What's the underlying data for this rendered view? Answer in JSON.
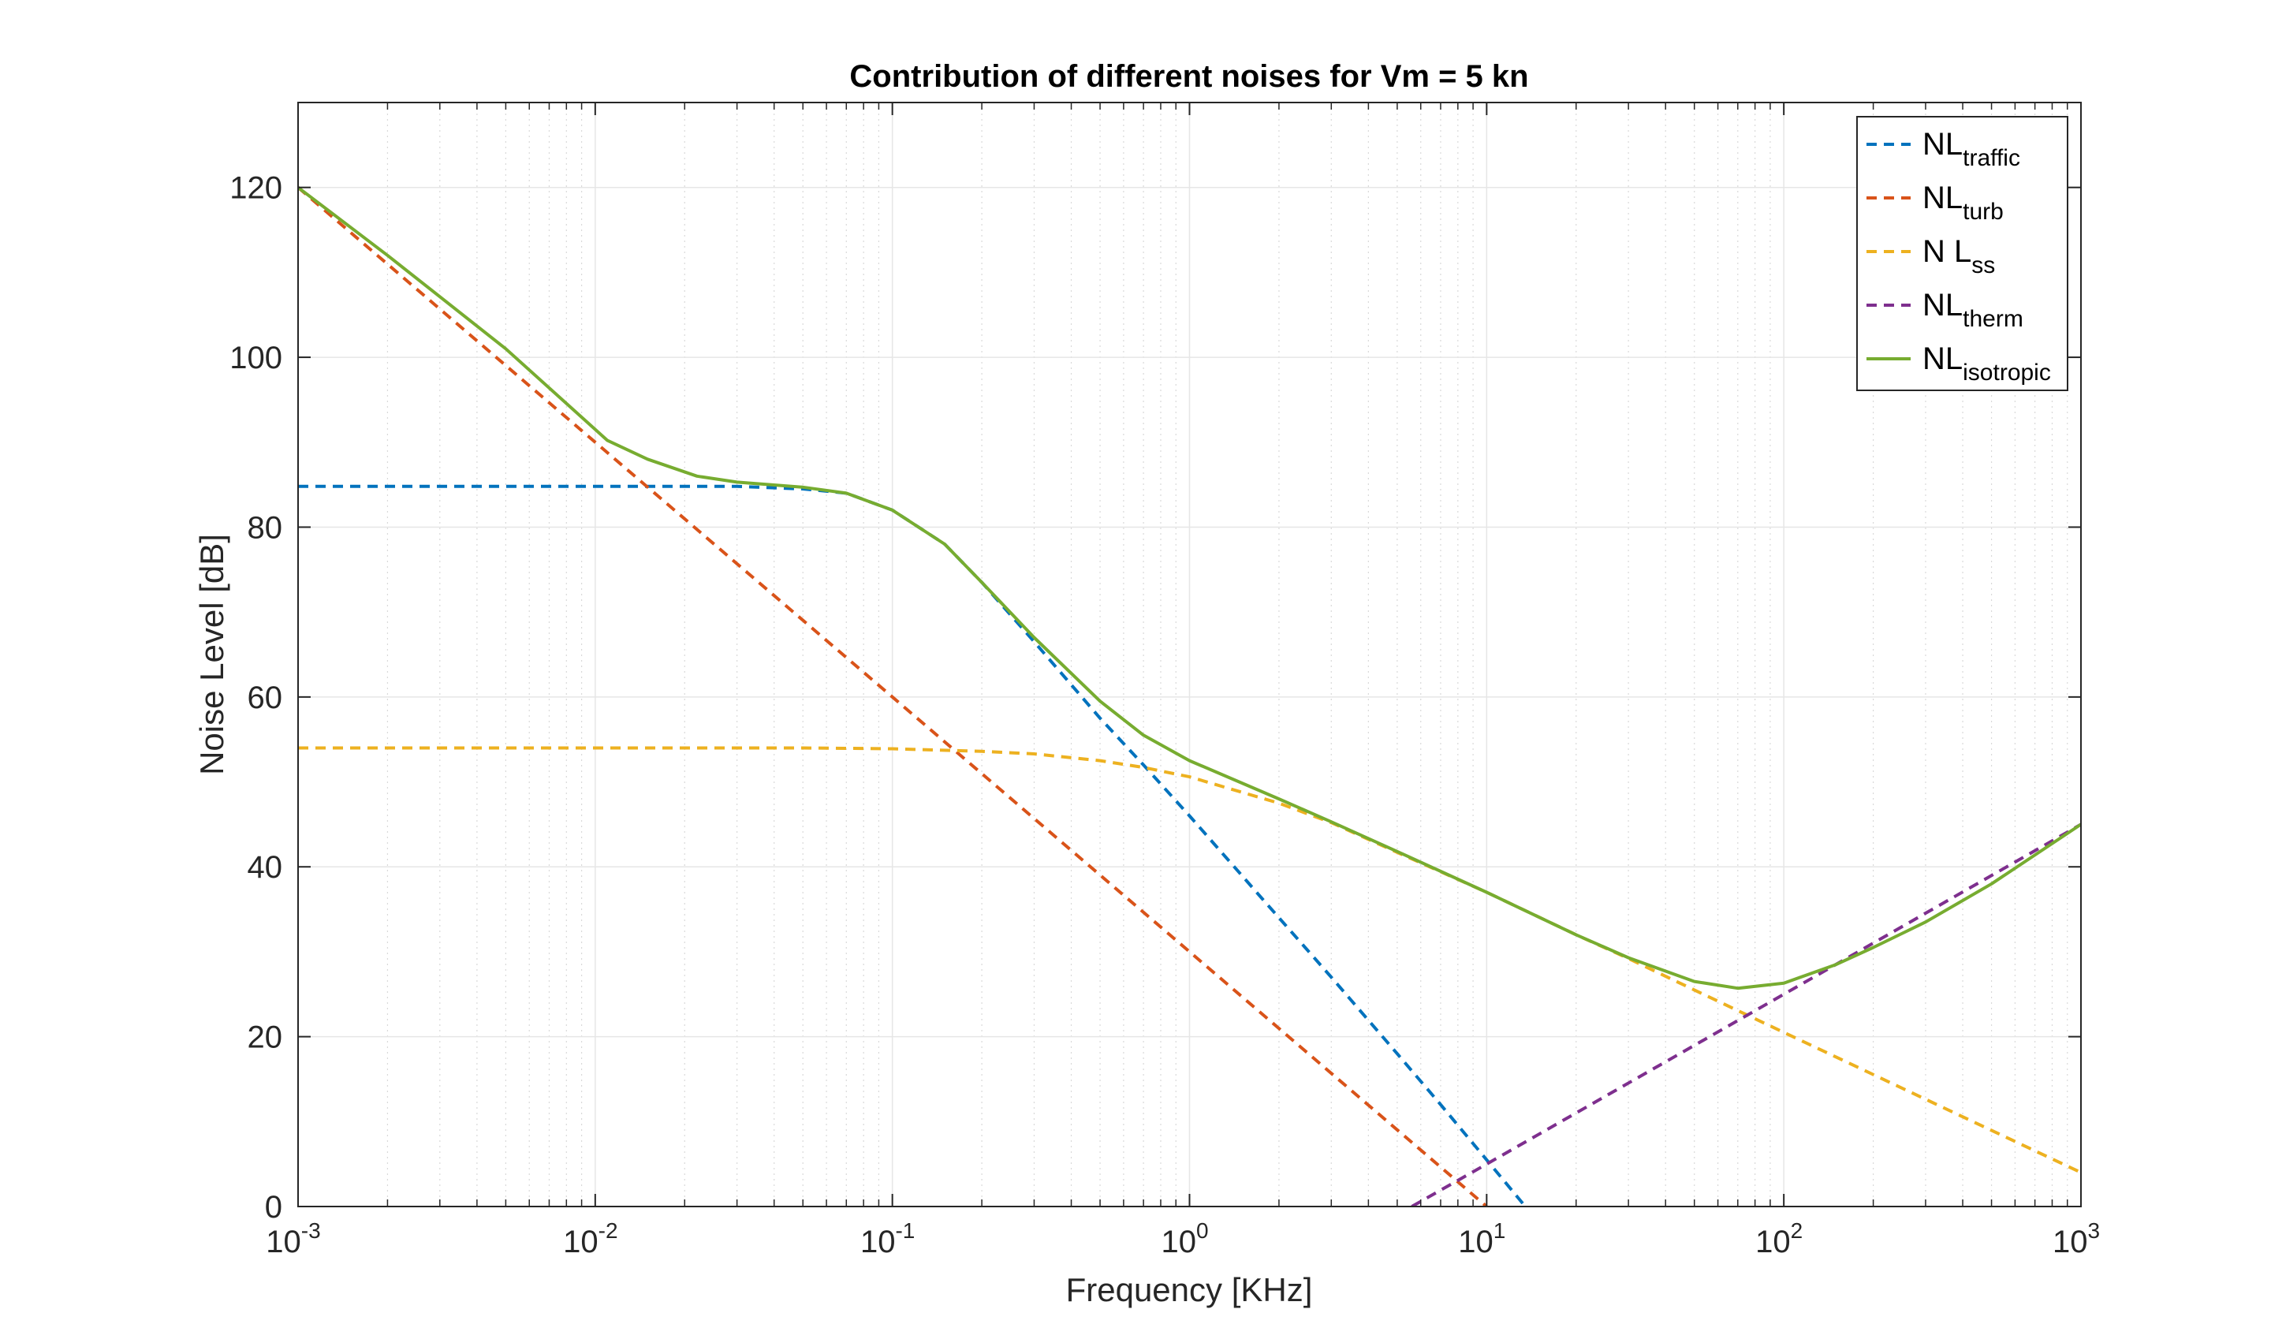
{
  "chart_data": {
    "type": "line",
    "title": "Contribution of different noises for Vm = 5 kn",
    "xlabel": "Frequency [KHz]",
    "ylabel": "Noise Level [dB]",
    "xscale": "log",
    "xlim": [
      0.001,
      1000
    ],
    "ylim": [
      0,
      130
    ],
    "grid": true,
    "legend_position": "top-right",
    "x_ticks": [
      {
        "value": 0.001,
        "base": "10",
        "exp": "-3"
      },
      {
        "value": 0.01,
        "base": "10",
        "exp": "-2"
      },
      {
        "value": 0.1,
        "base": "10",
        "exp": "-1"
      },
      {
        "value": 1,
        "base": "10",
        "exp": "0"
      },
      {
        "value": 10,
        "base": "10",
        "exp": "1"
      },
      {
        "value": 100,
        "base": "10",
        "exp": "2"
      },
      {
        "value": 1000,
        "base": "10",
        "exp": "3"
      }
    ],
    "y_ticks": [
      {
        "value": 0,
        "label": "0"
      },
      {
        "value": 20,
        "label": "20"
      },
      {
        "value": 40,
        "label": "40"
      },
      {
        "value": 60,
        "label": "60"
      },
      {
        "value": 80,
        "label": "80"
      },
      {
        "value": 100,
        "label": "100"
      },
      {
        "value": 120,
        "label": "120"
      }
    ],
    "series": [
      {
        "name_main": "NL",
        "name_sub": "traffic",
        "color": "#0072BD",
        "dash": true,
        "points": [
          [
            0.001,
            84.8
          ],
          [
            0.01,
            84.8
          ],
          [
            0.03,
            84.8
          ],
          [
            0.05,
            84.5
          ],
          [
            0.07,
            84.0
          ],
          [
            0.1,
            82.0
          ],
          [
            0.15,
            78.0
          ],
          [
            0.2,
            73.5
          ],
          [
            0.3,
            66.5
          ],
          [
            0.5,
            57.5
          ],
          [
            0.7,
            52.0
          ],
          [
            1,
            46.0
          ],
          [
            2,
            34.0
          ],
          [
            3,
            27.0
          ],
          [
            5,
            18.0
          ],
          [
            7,
            12.0
          ],
          [
            10,
            5.5
          ],
          [
            13.5,
            0
          ]
        ]
      },
      {
        "name_main": "NL",
        "name_sub": "turb",
        "color": "#D95319",
        "dash": true,
        "points": [
          [
            0.001,
            120
          ],
          [
            1,
            30
          ],
          [
            10,
            0
          ]
        ]
      },
      {
        "name_main": "N L",
        "name_sub": "ss",
        "color": "#EDB120",
        "dash": true,
        "points": [
          [
            0.001,
            54.0
          ],
          [
            0.05,
            54.0
          ],
          [
            0.1,
            53.9
          ],
          [
            0.2,
            53.6
          ],
          [
            0.3,
            53.3
          ],
          [
            0.5,
            52.5
          ],
          [
            0.7,
            51.7
          ],
          [
            1,
            50.6
          ],
          [
            2,
            47.5
          ],
          [
            3,
            45.2
          ],
          [
            5,
            41.7
          ],
          [
            10,
            37.0
          ],
          [
            20,
            32.0
          ],
          [
            30,
            29.2
          ],
          [
            50,
            25.5
          ],
          [
            100,
            20.5
          ],
          [
            1000,
            4.0
          ]
        ]
      },
      {
        "name_main": "NL",
        "name_sub": "therm",
        "color": "#7E2F8E",
        "dash": true,
        "points": [
          [
            5.6,
            0
          ],
          [
            10,
            5.0
          ],
          [
            100,
            25.0
          ],
          [
            1000,
            45.0
          ]
        ]
      },
      {
        "name_main": "NL",
        "name_sub": "isotropic",
        "color": "#77AC30",
        "dash": false,
        "points": [
          [
            0.001,
            120
          ],
          [
            0.002,
            112
          ],
          [
            0.005,
            101
          ],
          [
            0.011,
            90.2
          ],
          [
            0.015,
            88.0
          ],
          [
            0.022,
            86.0
          ],
          [
            0.03,
            85.3
          ],
          [
            0.05,
            84.7
          ],
          [
            0.07,
            84.0
          ],
          [
            0.1,
            82.0
          ],
          [
            0.15,
            78.0
          ],
          [
            0.2,
            73.5
          ],
          [
            0.3,
            67.0
          ],
          [
            0.5,
            59.5
          ],
          [
            0.7,
            55.5
          ],
          [
            1,
            52.5
          ],
          [
            2,
            48.0
          ],
          [
            3,
            45.3
          ],
          [
            5,
            41.8
          ],
          [
            10,
            37.0
          ],
          [
            20,
            32.0
          ],
          [
            30,
            29.3
          ],
          [
            50,
            26.5
          ],
          [
            70,
            25.7
          ],
          [
            100,
            26.3
          ],
          [
            150,
            28.5
          ],
          [
            200,
            30.5
          ],
          [
            300,
            33.5
          ],
          [
            500,
            38.0
          ],
          [
            1000,
            45.0
          ]
        ]
      }
    ]
  }
}
